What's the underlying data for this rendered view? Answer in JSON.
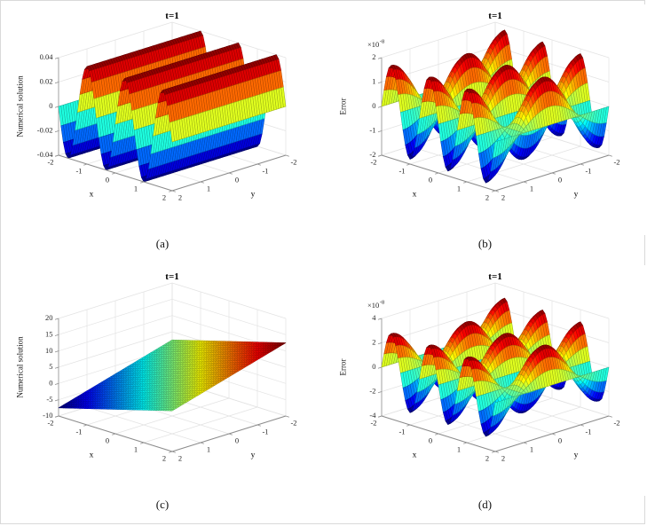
{
  "page": {
    "background": "#ffffff",
    "border_color": "#d9d9d9"
  },
  "chart_data": [
    {
      "id": "a",
      "type": "surface",
      "title": "t=1",
      "caption": "(a)",
      "xlabel": "x",
      "ylabel": "y",
      "zlabel": "Numerical solution",
      "x_range": [
        -2,
        2
      ],
      "y_range": [
        -2,
        2
      ],
      "z_range": [
        -0.04,
        0.04
      ],
      "x_ticks": [
        -2,
        -1,
        0,
        1,
        2
      ],
      "x_tick_labels": [
        "-2",
        "-1",
        "0",
        "1",
        "2"
      ],
      "y_ticks": [
        -2,
        -1,
        0,
        1,
        2
      ],
      "y_tick_labels": [
        "-2",
        "-1",
        "0",
        "1",
        "2"
      ],
      "z_ticks": [
        -0.04,
        -0.02,
        0,
        0.02,
        0.04
      ],
      "z_tick_labels": [
        "-0.04",
        "-0.02",
        "0",
        "0.02",
        "0.04"
      ],
      "z_function_js": "0.04*Math.sin(1.5*Math.PI*x)",
      "colormap": "jet",
      "grid": true,
      "view": "matlab-default-3d"
    },
    {
      "id": "b",
      "type": "surface",
      "title": "t=1",
      "caption": "(b)",
      "xlabel": "x",
      "ylabel": "y",
      "zlabel": "Error",
      "z_exponent": {
        "base": "×10",
        "exp": "-8"
      },
      "x_range": [
        -2,
        2
      ],
      "y_range": [
        -2,
        2
      ],
      "z_range": [
        -2,
        2
      ],
      "x_ticks": [
        -2,
        -1,
        0,
        1,
        2
      ],
      "x_tick_labels": [
        "-2",
        "-1",
        "0",
        "1",
        "2"
      ],
      "y_ticks": [
        -2,
        -1,
        0,
        1,
        2
      ],
      "y_tick_labels": [
        "-2",
        "-1",
        "0",
        "1",
        "2"
      ],
      "z_ticks": [
        -2,
        -1,
        0,
        1,
        2
      ],
      "z_tick_labels": [
        "-2",
        "-1",
        "0",
        "1",
        "2"
      ],
      "z_function_js": "1.8*Math.sin(1.5*Math.PI*x)*Math.cos(0.5*Math.PI*y)",
      "colormap": "jet",
      "grid": true,
      "view": "matlab-default-3d"
    },
    {
      "id": "c",
      "type": "surface",
      "title": "t=1",
      "caption": "(c)",
      "xlabel": "x",
      "ylabel": "y",
      "zlabel": "Numerical solution",
      "x_range": [
        -2,
        2
      ],
      "y_range": [
        -2,
        2
      ],
      "z_range": [
        -10,
        20
      ],
      "x_ticks": [
        -2,
        -1,
        0,
        1,
        2
      ],
      "x_tick_labels": [
        "-2",
        "-1",
        "0",
        "1",
        "2"
      ],
      "y_ticks": [
        -2,
        -1,
        0,
        1,
        2
      ],
      "y_tick_labels": [
        "-2",
        "-1",
        "0",
        "1",
        "2"
      ],
      "z_ticks": [
        -10,
        -5,
        0,
        5,
        10,
        15,
        20
      ],
      "z_tick_labels": [
        "-10",
        "-5",
        "0",
        "5",
        "10",
        "15",
        "20"
      ],
      "z_function_js": "2.5*(x-y)+2.5",
      "colormap": "jet",
      "grid": true,
      "view": "matlab-default-3d"
    },
    {
      "id": "d",
      "type": "surface",
      "title": "t=1",
      "caption": "(d)",
      "xlabel": "x",
      "ylabel": "y",
      "zlabel": "Error",
      "z_exponent": {
        "base": "×10",
        "exp": "-8"
      },
      "x_range": [
        -2,
        2
      ],
      "y_range": [
        -2,
        2
      ],
      "z_range": [
        -4,
        4
      ],
      "x_ticks": [
        -2,
        -1,
        0,
        1,
        2
      ],
      "x_tick_labels": [
        "-2",
        "-1",
        "0",
        "1",
        "2"
      ],
      "y_ticks": [
        -2,
        -1,
        0,
        1,
        2
      ],
      "y_tick_labels": [
        "-2",
        "-1",
        "0",
        "1",
        "2"
      ],
      "z_ticks": [
        -4,
        -2,
        0,
        2,
        4
      ],
      "z_tick_labels": [
        "-4",
        "-2",
        "0",
        "2",
        "4"
      ],
      "z_function_js": "3*Math.sin(1.5*Math.PI*x)*Math.cos(0.5*Math.PI*y)",
      "colormap": "jet",
      "grid": true,
      "view": "matlab-default-3d"
    }
  ]
}
